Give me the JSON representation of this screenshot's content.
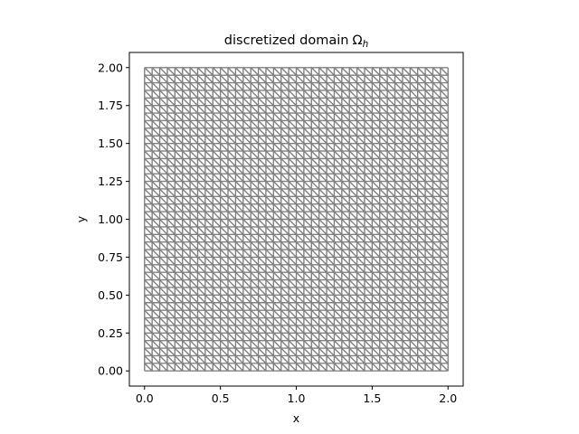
{
  "chart_data": {
    "type": "mesh",
    "title": "discretized domain",
    "title_symbol": "Ω",
    "title_subscript": "h",
    "xlabel": "x",
    "ylabel": "y",
    "xlim": [
      -0.1,
      2.1
    ],
    "ylim": [
      -0.1,
      2.1
    ],
    "domain": {
      "x": [
        0,
        2
      ],
      "y": [
        0,
        2
      ]
    },
    "divisions": {
      "x": 40,
      "y": 40
    },
    "element": "triangle",
    "diagonal": "bottom-right to top-left",
    "mesh_color": "#808080",
    "x_ticks": [
      {
        "value": 0.0,
        "label": "0.0"
      },
      {
        "value": 0.5,
        "label": "0.5"
      },
      {
        "value": 1.0,
        "label": "1.0"
      },
      {
        "value": 1.5,
        "label": "1.5"
      },
      {
        "value": 2.0,
        "label": "2.0"
      }
    ],
    "y_ticks": [
      {
        "value": 0.0,
        "label": "0.00"
      },
      {
        "value": 0.25,
        "label": "0.25"
      },
      {
        "value": 0.5,
        "label": "0.50"
      },
      {
        "value": 0.75,
        "label": "0.75"
      },
      {
        "value": 1.0,
        "label": "1.00"
      },
      {
        "value": 1.25,
        "label": "1.25"
      },
      {
        "value": 1.5,
        "label": "1.50"
      },
      {
        "value": 1.75,
        "label": "1.75"
      },
      {
        "value": 2.0,
        "label": "2.00"
      }
    ],
    "grid": false,
    "legend": "none"
  }
}
